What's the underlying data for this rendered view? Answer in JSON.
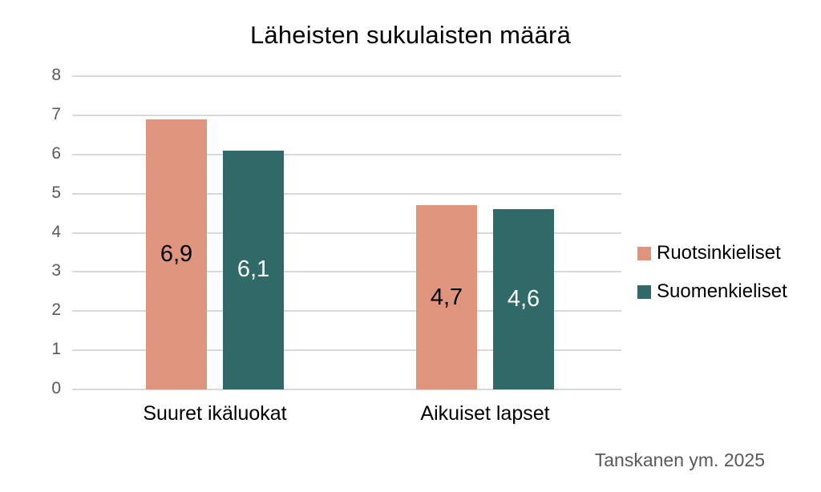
{
  "title": "Läheisten sukulaisten määrä",
  "source": "Tanskanen ym. 2025",
  "colors": {
    "background": "#FFFFFF",
    "gridline": "#D9D9D9",
    "axis_text": "#595959",
    "title_text": "#000000",
    "ruotsinkieliset": "#DF947E",
    "suomenkieliset": "#2F6A68"
  },
  "chart_data": {
    "type": "bar",
    "title": "Läheisten sukulaisten määrä",
    "categories": [
      "Suuret ikäluokat",
      "Aikuiset lapset"
    ],
    "series": [
      {
        "name": "Ruotsinkieliset",
        "values": [
          6.9,
          4.7
        ],
        "value_labels": [
          "6,9",
          "4,7"
        ],
        "color": "#DF947E",
        "label_color": "#000000"
      },
      {
        "name": "Suomenkieliset",
        "values": [
          6.1,
          4.6
        ],
        "value_labels": [
          "6,1",
          "4,6"
        ],
        "color": "#2F6A68",
        "label_color": "#FFFFFF"
      }
    ],
    "xlabel": "",
    "ylabel": "",
    "ylim": [
      0,
      8
    ],
    "yticks": [
      0,
      1,
      2,
      3,
      4,
      5,
      6,
      7,
      8
    ],
    "grid": true,
    "legend_position": "right",
    "annotation": "Tanskanen ym. 2025"
  }
}
